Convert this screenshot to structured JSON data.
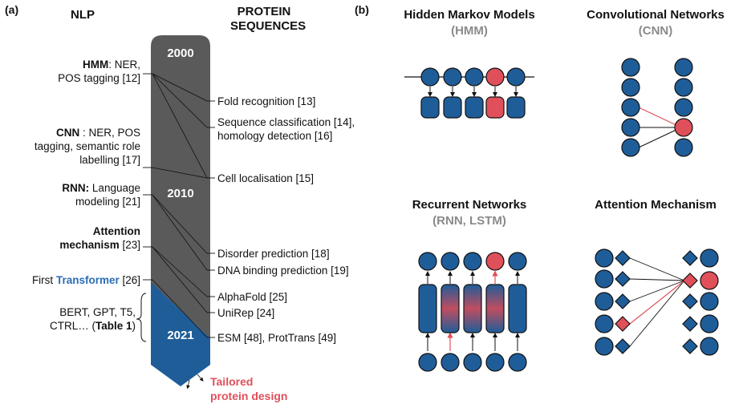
{
  "panel_a": {
    "label": "(a)",
    "col_nlp": "NLP",
    "col_protein_1": "PROTEIN",
    "col_protein_2": "SEQUENCES",
    "year_2000": "2000",
    "year_2010": "2010",
    "year_2021": "2021",
    "nlp": {
      "hmm_bold": "HMM",
      "hmm_rest": ": NER,",
      "hmm_line2": "POS tagging [12]",
      "cnn_bold": "CNN",
      "cnn_rest": " : NER, POS",
      "cnn_line2": "tagging, semantic role",
      "cnn_line3": "labelling [17]",
      "rnn_bold": "RNN:",
      "rnn_rest": " Language",
      "rnn_line2": "modeling [21]",
      "att_bold_1": "Attention",
      "att_bold_2": "mechanism",
      "att_rest": " [23]",
      "transformer_pre": "First ",
      "transformer_hl": "Transformer",
      "transformer_post": " [26]",
      "bert_line1": "BERT,  GPT, T5,",
      "bert_line2_pre": "CTRL… (",
      "bert_line2_bold": "Table 1",
      "bert_line2_post": ")"
    },
    "protein": {
      "fold": "Fold recognition [13]",
      "seqclass_1": "Sequence classification [14],",
      "seqclass_2": "homology detection [16]",
      "cell": "Cell localisation [15]",
      "disorder": "Disorder prediction [18]",
      "dna": "DNA binding prediction [19]",
      "alphafold": "AlphaFold [25]",
      "unirep": "UniRep [24]",
      "esm": "ESM [48], ProtTrans [49]"
    },
    "tailored_1": "Tailored",
    "tailored_2": "protein design"
  },
  "panel_b": {
    "label": "(b)",
    "hmm_title": "Hidden Markov Models",
    "hmm_sub": "(HMM)",
    "cnn_title": "Convolutional Networks",
    "cnn_sub": "(CNN)",
    "rnn_title": "Recurrent Networks",
    "rnn_sub": "(RNN, LSTM)",
    "att_title": "Attention Mechanism"
  },
  "colors": {
    "blue": "#1f5d99",
    "red": "#e0505a",
    "gray_bar": "#5a5a5a",
    "transformer_blue": "#2a6db5",
    "subtitle_gray": "#8a8a8a"
  }
}
